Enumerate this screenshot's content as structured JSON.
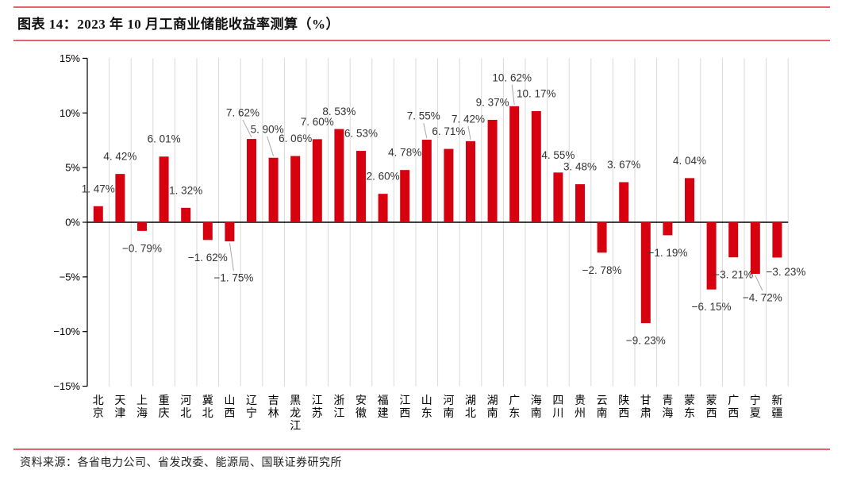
{
  "header": {
    "title": "图表 14：2023 年 10 月工商业储能收益率测算（%）"
  },
  "footer": {
    "source_note": "资料来源：各省电力公司、省发改委、能源局、国联证券研究所"
  },
  "colors": {
    "accent_rule": "#e2636e",
    "bar": "#d7000f",
    "gridline": "#d9d9d9",
    "axis": "#000000",
    "label_text": "#333333",
    "leader_line": "#a6a6a6"
  },
  "chart_data": {
    "type": "bar",
    "title": "2023 年 10 月工商业储能收益率测算（%）",
    "xlabel": "",
    "ylabel": "",
    "ylim": [
      -15,
      15
    ],
    "ytick_values": [
      15,
      10,
      5,
      0,
      -5,
      -10,
      -15
    ],
    "ytick_labels": [
      "15%",
      "10%",
      "5%",
      "0%",
      "−5%",
      "−10%",
      "−15%"
    ],
    "grid": "vertical-category-lines",
    "legend": "none",
    "categories": [
      "北京",
      "天津",
      "上海",
      "重庆",
      "河北",
      "冀北",
      "山西",
      "辽宁",
      "吉林",
      "黑龙江",
      "江苏",
      "浙江",
      "安徽",
      "福建",
      "江西",
      "山东",
      "河南",
      "湖北",
      "湖南",
      "广东",
      "海南",
      "四川",
      "贵州",
      "云南",
      "陕西",
      "甘肃",
      "青海",
      "蒙东",
      "蒙西",
      "广西",
      "宁夏",
      "新疆"
    ],
    "values": [
      1.47,
      4.42,
      -0.79,
      6.01,
      1.32,
      -1.62,
      -1.75,
      7.62,
      5.9,
      6.06,
      7.6,
      8.53,
      6.53,
      2.6,
      4.78,
      7.55,
      6.71,
      7.42,
      9.37,
      10.62,
      10.17,
      4.55,
      3.48,
      -2.78,
      3.67,
      -9.23,
      -1.19,
      4.04,
      -6.15,
      -3.21,
      -4.72,
      -3.23
    ],
    "value_labels": [
      "1. 47%",
      "4. 42%",
      "−0. 79%",
      "6. 01%",
      "1. 32%",
      "−1. 62%",
      "−1. 75%",
      "7. 62%",
      "5. 90%",
      "6. 06%",
      "7. 60%",
      "8. 53%",
      "6. 53%",
      "2. 60%",
      "4. 78%",
      "7. 55%",
      "6. 71%",
      "7. 42%",
      "9. 37%",
      "10. 62%",
      "10. 17%",
      "4. 55%",
      "3. 48%",
      "−2. 78%",
      "3. 67%",
      "−9. 23%",
      "−1. 19%",
      "4. 04%",
      "−6. 15%",
      "−3. 21%",
      "−4. 72%",
      "−3. 23%"
    ],
    "label_offsets": {
      "6": [
        5,
        24
      ],
      "7": [
        -11,
        -11
      ],
      "8": [
        -8,
        -14
      ],
      "15": [
        -4,
        -8
      ],
      "17": [
        -3,
        -6
      ],
      "19": [
        -3,
        -14
      ],
      "30": [
        9,
        8
      ],
      "31": [
        11,
        -4
      ]
    },
    "leader_line_indices": [
      6,
      7,
      8,
      15,
      17,
      19,
      30
    ]
  }
}
